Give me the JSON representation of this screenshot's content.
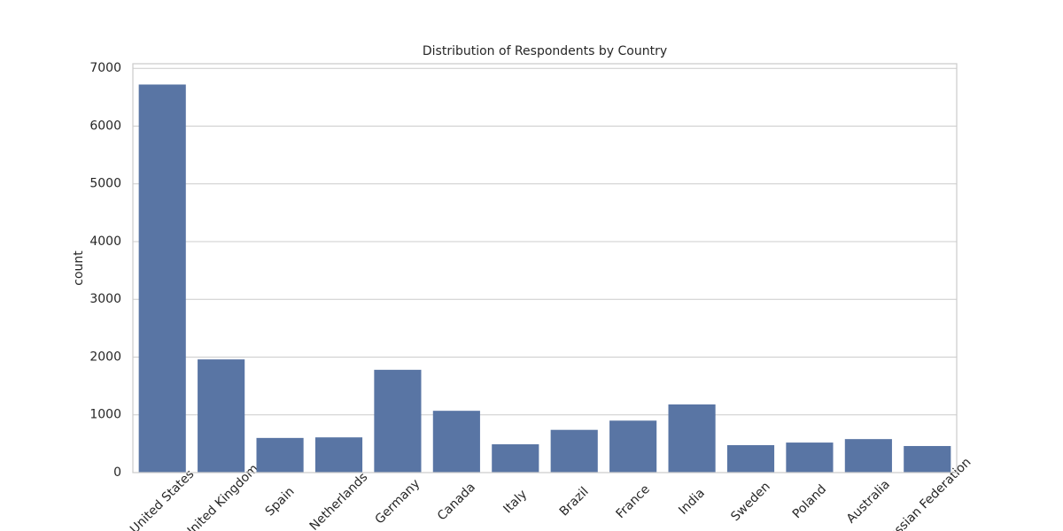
{
  "chart_data": {
    "type": "bar",
    "title": "Distribution of Respondents by Country",
    "y_label": "count",
    "categories": [
      "United States",
      "United Kingdom",
      "Spain",
      "Netherlands",
      "Germany",
      "Canada",
      "Italy",
      "Brazil",
      "France",
      "India",
      "Sweden",
      "Poland",
      "Australia",
      "Russian Federation"
    ],
    "values": [
      6720,
      1960,
      600,
      610,
      1780,
      1070,
      490,
      740,
      900,
      1180,
      475,
      520,
      580,
      460
    ],
    "color": "#5975a4",
    "ylim": [
      0,
      7080
    ],
    "yticks": [
      0,
      1000,
      2000,
      3000,
      4000,
      5000,
      6000,
      7000
    ],
    "grid": true
  }
}
